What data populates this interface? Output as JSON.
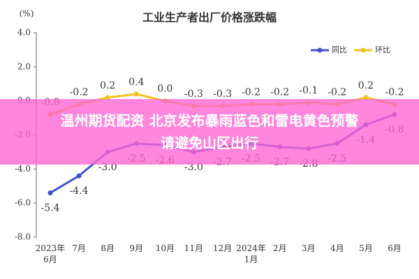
{
  "chart_data": {
    "type": "line",
    "title": "工业生产者出厂价格涨跌幅",
    "ylabel": "(%)",
    "categories": [
      "2023年\n6月",
      "7月",
      "8月",
      "9月",
      "10月",
      "11月",
      "12月",
      "2024年\n1月",
      "2月",
      "3月",
      "4月",
      "5月",
      "6月"
    ],
    "series": [
      {
        "name": "同比",
        "color": "#3f51c9",
        "values": [
          -5.4,
          -4.4,
          -3.0,
          -2.5,
          -2.6,
          -3.0,
          -2.7,
          -2.5,
          -2.7,
          -2.8,
          -2.5,
          -1.4,
          -0.8
        ],
        "value_labels": [
          "-5.4",
          "-4.4",
          "-3.0",
          "-2.5",
          "-2.6",
          "-3.0",
          "-2.7",
          "-2.5",
          "-2.7",
          "-2.8",
          "-2.5",
          "-1.4",
          "-0.8"
        ]
      },
      {
        "name": "环比",
        "color": "#f2c41c",
        "values": [
          -0.8,
          -0.2,
          0.2,
          0.4,
          0.0,
          -0.3,
          -0.3,
          -0.2,
          -0.2,
          -0.1,
          -0.2,
          0.2,
          -0.2
        ],
        "value_labels": [
          "-0.8",
          "-0.2",
          "0.2",
          "0.4",
          "0.0",
          "-0.3",
          "-0.3",
          "-0.2",
          "-0.2",
          "-0.1",
          "-0.2",
          "0.2",
          "-0.2"
        ]
      }
    ],
    "ylim": [
      -8,
      4
    ],
    "yticks": [
      {
        "value": 4,
        "label": "4.0"
      },
      {
        "value": 2,
        "label": "2.0"
      },
      {
        "value": 0,
        "label": "0.0"
      },
      {
        "value": -2,
        "label": "-2.0"
      },
      {
        "value": -4,
        "label": "-4.0"
      },
      {
        "value": -6,
        "label": "-6.0"
      },
      {
        "value": -8,
        "label": "-8.0"
      }
    ],
    "legend": "upper right"
  },
  "banner": [
    "温州期货配资 北京发布暴雨蓝色和雷电黄色预警",
    "请避免山区出行"
  ]
}
